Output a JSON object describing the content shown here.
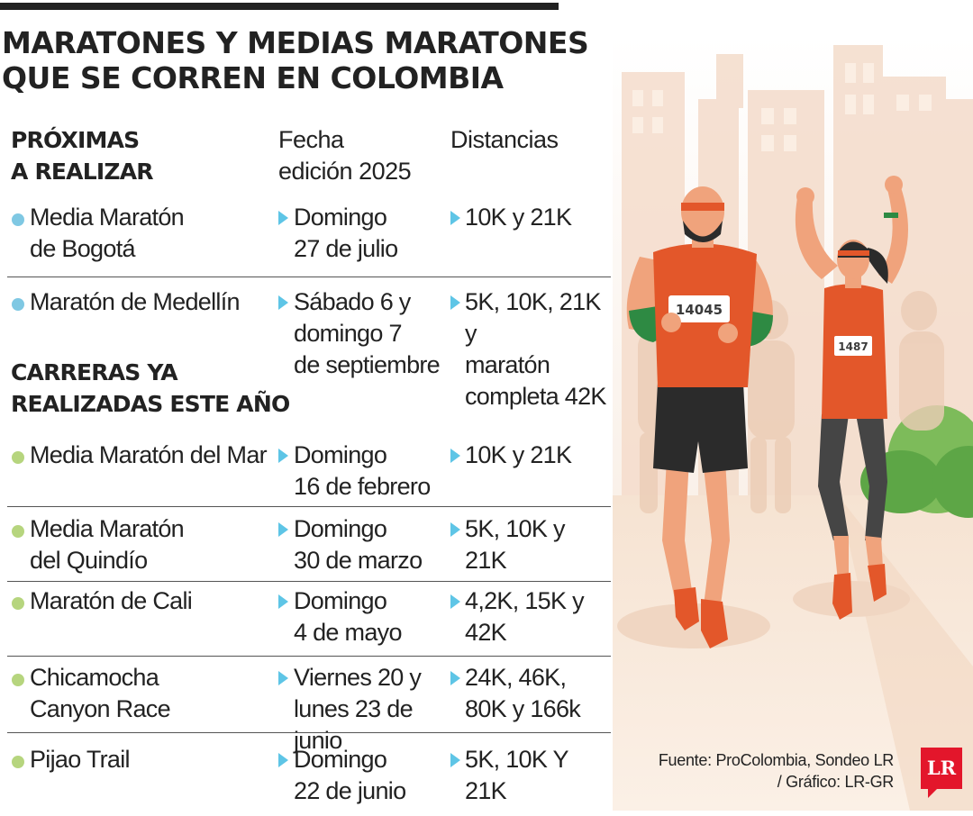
{
  "title": "MARATONES Y MEDIAS MARATONES\nQUE SE CORREN EN COLOMBIA",
  "colors": {
    "upcoming_bullet": "#7fc8e3",
    "past_bullet": "#b6d57e",
    "arrow": "#5ec5e6",
    "logo": "#e3162b"
  },
  "sections": {
    "upcoming": "PRÓXIMAS\nA REALIZAR",
    "past": "CARRERAS YA\nREALIZADAS ESTE AÑO"
  },
  "columns": {
    "date": "Fecha\nedición 2025",
    "distances": "Distancias"
  },
  "upcoming_races": [
    {
      "name": "Media Maratón\nde Bogotá",
      "date": "Domingo\n27 de julio",
      "distances": "10K y 21K"
    },
    {
      "name": "Maratón de Medellín",
      "date": "Sábado 6 y\ndomingo 7\nde septiembre",
      "distances": "5K, 10K, 21K y\nmaratón\ncompleta 42K"
    }
  ],
  "past_races": [
    {
      "name": "Media Maratón del Mar",
      "date": "Domingo\n16 de febrero",
      "distances": "10K y 21K"
    },
    {
      "name": "Media Maratón\ndel Quindío",
      "date": "Domingo\n30 de marzo",
      "distances": "5K, 10K y 21K"
    },
    {
      "name": "Maratón de Cali",
      "date": "Domingo\n4 de mayo",
      "distances": "4,2K, 15K y 42K"
    },
    {
      "name": "Chicamocha\nCanyon Race",
      "date": "Viernes 20 y\nlunes 23 de junio",
      "distances": "24K, 46K,\n80K y 166k"
    },
    {
      "name": "Pijao Trail",
      "date": "Domingo\n22 de junio",
      "distances": "5K, 10K Y 21K"
    }
  ],
  "illustration": {
    "runner_male_bib": "14045",
    "runner_female_bib": "1487"
  },
  "source": "Fuente: ProColombia, Sondeo LR\n/ Gráfico: LR-GR",
  "logo": "LR"
}
